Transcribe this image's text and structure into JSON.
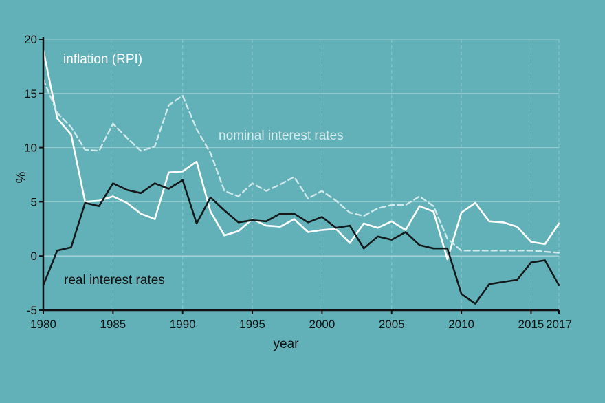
{
  "chart_data": {
    "type": "line",
    "xlabel": "year",
    "ylabel": "%",
    "xlim": [
      1980,
      2017
    ],
    "ylim": [
      -5,
      20
    ],
    "x_ticks": [
      1980,
      1985,
      1990,
      1995,
      2000,
      2005,
      2010,
      2015,
      2017
    ],
    "y_ticks": [
      -5,
      0,
      5,
      10,
      15,
      20
    ],
    "grid": "horizontal solid gridlines at y ticks; vertical dashed gridlines at x ticks",
    "x": [
      1980,
      1981,
      1982,
      1983,
      1984,
      1985,
      1986,
      1987,
      1988,
      1989,
      1990,
      1991,
      1992,
      1993,
      1994,
      1995,
      1996,
      1997,
      1998,
      1999,
      2000,
      2001,
      2002,
      2003,
      2004,
      2005,
      2006,
      2007,
      2008,
      2009,
      2010,
      2011,
      2012,
      2013,
      2014,
      2015,
      2016,
      2017
    ],
    "series": [
      {
        "name": "inflation (RPI)",
        "color": "#ffffff",
        "style": "solid",
        "values": [
          19.0,
          12.7,
          11.2,
          5.0,
          5.1,
          5.5,
          4.9,
          3.9,
          3.4,
          7.7,
          7.8,
          8.7,
          4.1,
          1.9,
          2.3,
          3.4,
          2.8,
          2.7,
          3.4,
          2.2,
          2.4,
          2.5,
          1.2,
          3.0,
          2.6,
          3.2,
          2.4,
          4.6,
          4.1,
          -0.3,
          4.0,
          4.9,
          3.2,
          3.1,
          2.7,
          1.3,
          1.1,
          3.0
        ]
      },
      {
        "name": "nominal interest rates",
        "color": "#cfe9eb",
        "style": "dashed",
        "values": [
          16.3,
          13.2,
          11.9,
          9.8,
          9.7,
          12.2,
          10.9,
          9.7,
          10.1,
          13.9,
          14.8,
          11.7,
          9.5,
          6.0,
          5.5,
          6.7,
          6.0,
          6.6,
          7.3,
          5.3,
          6.0,
          5.1,
          4.0,
          3.7,
          4.4,
          4.7,
          4.7,
          5.5,
          4.6,
          1.6,
          0.5,
          0.5,
          0.5,
          0.5,
          0.5,
          0.5,
          0.4,
          0.3
        ]
      },
      {
        "name": "real interest rates",
        "color": "#141a1c",
        "style": "solid",
        "values": [
          -2.7,
          0.5,
          0.8,
          4.9,
          4.6,
          6.7,
          6.1,
          5.8,
          6.7,
          6.2,
          7.0,
          3.0,
          5.4,
          4.2,
          3.1,
          3.3,
          3.2,
          3.9,
          3.9,
          3.1,
          3.6,
          2.6,
          2.8,
          0.7,
          1.8,
          1.5,
          2.2,
          1.0,
          0.7,
          0.7,
          -3.5,
          -4.4,
          -2.6,
          -2.4,
          -2.2,
          -0.6,
          -0.4,
          -2.7
        ]
      }
    ]
  }
}
